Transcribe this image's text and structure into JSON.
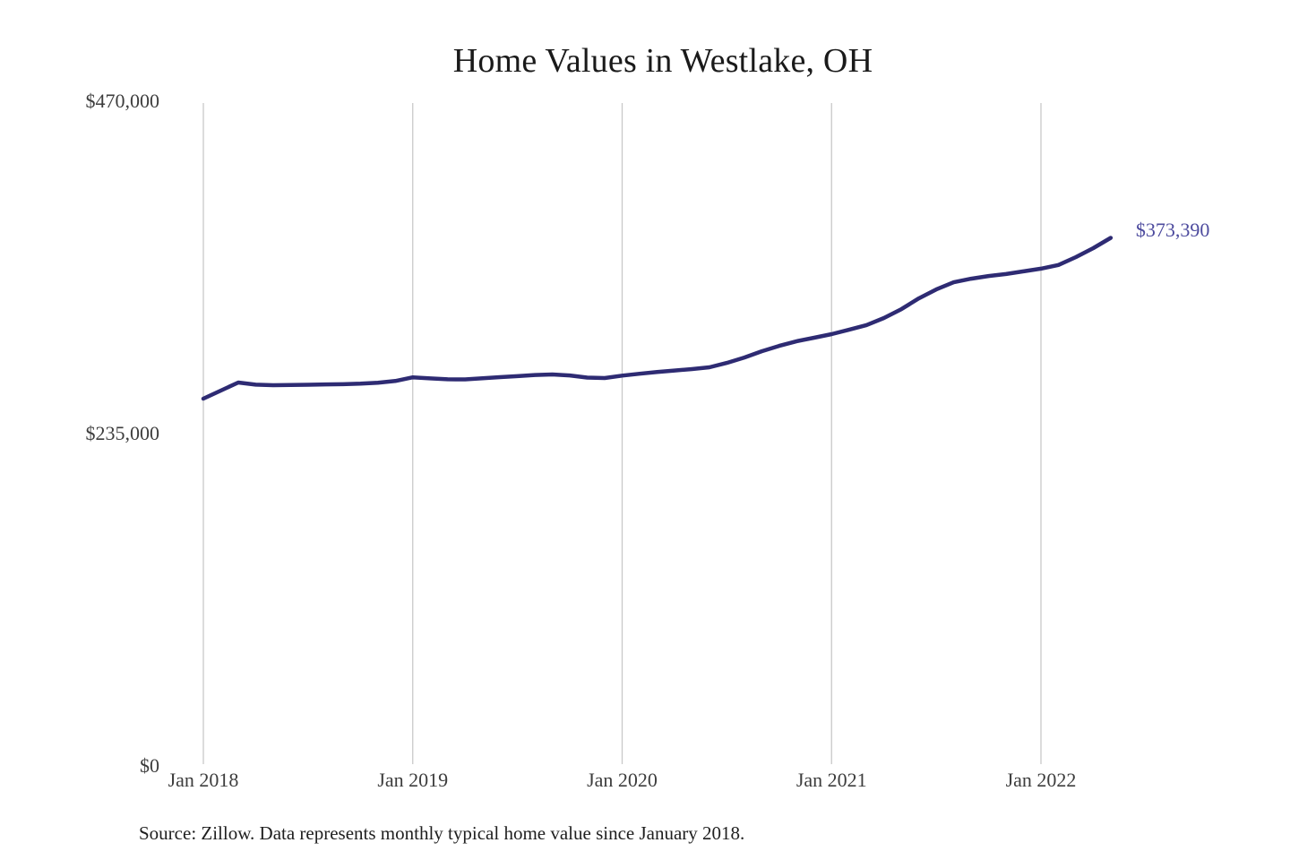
{
  "page": {
    "background": "#ffffff"
  },
  "chart_data": {
    "type": "line",
    "title": "Home Values in Westlake, OH",
    "source_note": "Source: Zillow. Data represents monthly typical home value since January 2018.",
    "series_name": "Monthly typical home value",
    "end_label": "$373,390",
    "end_value": 373390,
    "line_color": "#2e2b73",
    "end_label_color": "#4d4b9e",
    "grid_color": "#c9c9c9",
    "grid": "vertical-only",
    "legend": "none",
    "ylim": [
      0,
      470000
    ],
    "y_ticks": [
      {
        "label": "$470,000",
        "value": 470000
      },
      {
        "label": "$235,000",
        "value": 235000
      },
      {
        "label": "$0",
        "value": 0
      }
    ],
    "x_ticks": [
      {
        "label": "Jan 2018",
        "month_index": 0
      },
      {
        "label": "Jan 2019",
        "month_index": 12
      },
      {
        "label": "Jan 2020",
        "month_index": 24
      },
      {
        "label": "Jan 2021",
        "month_index": 36
      },
      {
        "label": "Jan 2022",
        "month_index": 48
      }
    ],
    "x": [
      "Jan 2018",
      "Feb 2018",
      "Mar 2018",
      "Apr 2018",
      "May 2018",
      "Jun 2018",
      "Jul 2018",
      "Aug 2018",
      "Sep 2018",
      "Oct 2018",
      "Nov 2018",
      "Dec 2018",
      "Jan 2019",
      "Feb 2019",
      "Mar 2019",
      "Apr 2019",
      "May 2019",
      "Jun 2019",
      "Jul 2019",
      "Aug 2019",
      "Sep 2019",
      "Oct 2019",
      "Nov 2019",
      "Dec 2019",
      "Jan 2020",
      "Feb 2020",
      "Mar 2020",
      "Apr 2020",
      "May 2020",
      "Jun 2020",
      "Jul 2020",
      "Aug 2020",
      "Sep 2020",
      "Oct 2020",
      "Nov 2020",
      "Dec 2020",
      "Jan 2021",
      "Feb 2021",
      "Mar 2021",
      "Apr 2021",
      "May 2021",
      "Jun 2021",
      "Jul 2021",
      "Aug 2021",
      "Sep 2021",
      "Oct 2021",
      "Nov 2021",
      "Dec 2021",
      "Jan 2022",
      "Feb 2022",
      "Mar 2022",
      "Apr 2022",
      "May 2022"
    ],
    "values": [
      259700,
      265400,
      271100,
      269600,
      269200,
      269300,
      269500,
      269800,
      269900,
      270300,
      271000,
      272200,
      274800,
      274000,
      273400,
      273300,
      274100,
      274900,
      275600,
      276400,
      276800,
      276100,
      274600,
      274300,
      276000,
      277300,
      278600,
      279600,
      280600,
      281900,
      285000,
      288800,
      293200,
      297000,
      300300,
      302800,
      305300,
      308400,
      311700,
      316700,
      323000,
      330600,
      336900,
      342000,
      344500,
      346400,
      347800,
      349700,
      351600,
      354200,
      359800,
      366100,
      373390
    ]
  }
}
